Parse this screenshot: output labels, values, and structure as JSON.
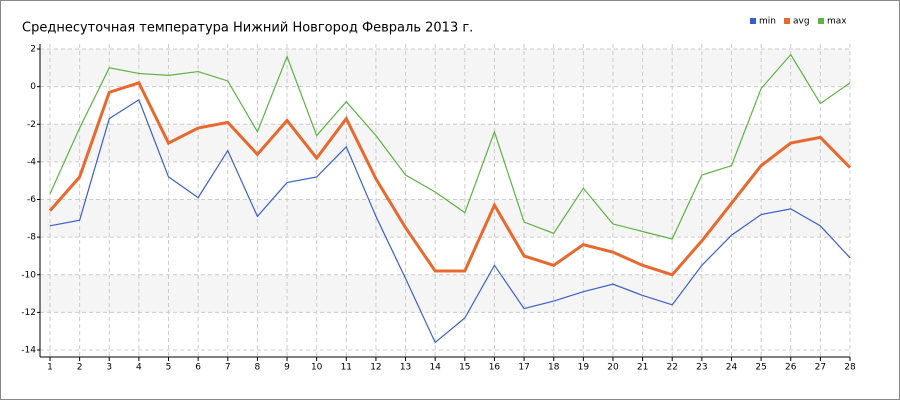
{
  "chart_data": {
    "type": "line",
    "title": "Среднесуточная температура Нижний Новгород  Февраль 2013 г.",
    "x": [
      1,
      2,
      3,
      4,
      5,
      6,
      7,
      8,
      9,
      10,
      11,
      12,
      13,
      14,
      15,
      16,
      17,
      18,
      19,
      20,
      21,
      22,
      23,
      24,
      25,
      26,
      27,
      28
    ],
    "series": [
      {
        "name": "min",
        "color": "#3a5fcd",
        "values": [
          -7.4,
          -7.1,
          -1.7,
          -0.7,
          -4.8,
          -5.9,
          -3.4,
          -6.9,
          -5.1,
          -4.8,
          -3.2,
          -6.9,
          -10.2,
          -13.6,
          -12.3,
          -9.5,
          -11.8,
          -11.4,
          -10.9,
          -10.5,
          -11.1,
          -11.6,
          -9.5,
          -7.9,
          -6.8,
          -6.5,
          -7.4,
          -9.1
        ]
      },
      {
        "name": "avg",
        "color": "#e8692e",
        "values": [
          -6.6,
          -4.8,
          -0.3,
          0.2,
          -3.0,
          -2.2,
          -1.9,
          -3.6,
          -1.8,
          -3.8,
          -1.7,
          -4.9,
          -7.5,
          -9.8,
          -9.8,
          -6.3,
          -9.0,
          -9.5,
          -8.4,
          -8.8,
          -9.5,
          -10.0,
          -8.2,
          -6.2,
          -4.2,
          -3.0,
          -2.7,
          -4.3
        ]
      },
      {
        "name": "max",
        "color": "#5cb343",
        "values": [
          -5.7,
          -2.2,
          1.0,
          0.7,
          0.6,
          0.8,
          0.3,
          -2.4,
          1.6,
          -2.6,
          -0.8,
          -2.6,
          -4.7,
          -5.6,
          -6.7,
          -2.4,
          -7.2,
          -7.8,
          -5.4,
          -7.3,
          -7.7,
          -8.1,
          -4.7,
          -4.2,
          -0.1,
          1.7,
          -0.9,
          0.2
        ]
      }
    ],
    "xlim": [
      1,
      28
    ],
    "xticks": [
      1,
      2,
      3,
      4,
      5,
      6,
      7,
      8,
      9,
      10,
      11,
      12,
      13,
      14,
      15,
      16,
      17,
      18,
      19,
      20,
      21,
      22,
      23,
      24,
      25,
      26,
      27,
      28
    ],
    "ylim": [
      -14,
      2
    ],
    "yticks": [
      -14,
      -12,
      -10,
      -8,
      -6,
      -4,
      -2,
      0,
      2
    ],
    "grid": true,
    "legend": "top-right"
  }
}
